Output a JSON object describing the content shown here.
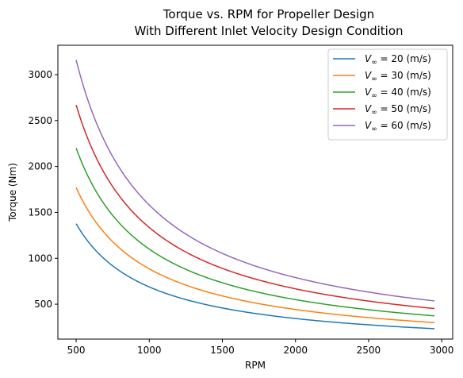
{
  "chart_data": {
    "type": "line",
    "title_line1": "Torque vs. RPM for Propeller Design",
    "title_line2": "With Different Inlet Velocity Design Condition",
    "xlabel": "RPM",
    "ylabel": "Torque (Nm)",
    "xlim": [
      375,
      3075
    ],
    "ylim": [
      120,
      3320
    ],
    "xticks": [
      500,
      1000,
      1500,
      2000,
      2500,
      3000
    ],
    "yticks": [
      500,
      1000,
      1500,
      2000,
      2500,
      3000
    ],
    "grid": false,
    "legend_position": "top-right",
    "x": [
      500,
      550,
      600,
      650,
      700,
      750,
      800,
      900,
      1000,
      1100,
      1200,
      1300,
      1400,
      1500,
      1600,
      1700,
      1800,
      1900,
      2000,
      2100,
      2200,
      2300,
      2400,
      2500,
      2600,
      2700,
      2800,
      2950
    ],
    "series": [
      {
        "name": "V∞ = 20 (m/s)",
        "label_prefix": "V",
        "label_sub": "∞",
        "label_rest": " = 20 (m/s)",
        "color": "#1f77b4",
        "k": 688000
      },
      {
        "name": "V∞ = 30 (m/s)",
        "label_prefix": "V",
        "label_sub": "∞",
        "label_rest": " = 30 (m/s)",
        "color": "#ff7f0e",
        "k": 885000
      },
      {
        "name": "V∞ = 40 (m/s)",
        "label_prefix": "V",
        "label_sub": "∞",
        "label_rest": " = 40 (m/s)",
        "color": "#2ca02c",
        "k": 1100000
      },
      {
        "name": "V∞ = 50 (m/s)",
        "label_prefix": "V",
        "label_sub": "∞",
        "label_rest": " = 50 (m/s)",
        "color": "#d62728",
        "k": 1335000
      },
      {
        "name": "V∞ = 60 (m/s)",
        "label_prefix": "V",
        "label_sub": "∞",
        "label_rest": " = 60 (m/s)",
        "color": "#9467bd",
        "k": 1580000
      }
    ]
  }
}
